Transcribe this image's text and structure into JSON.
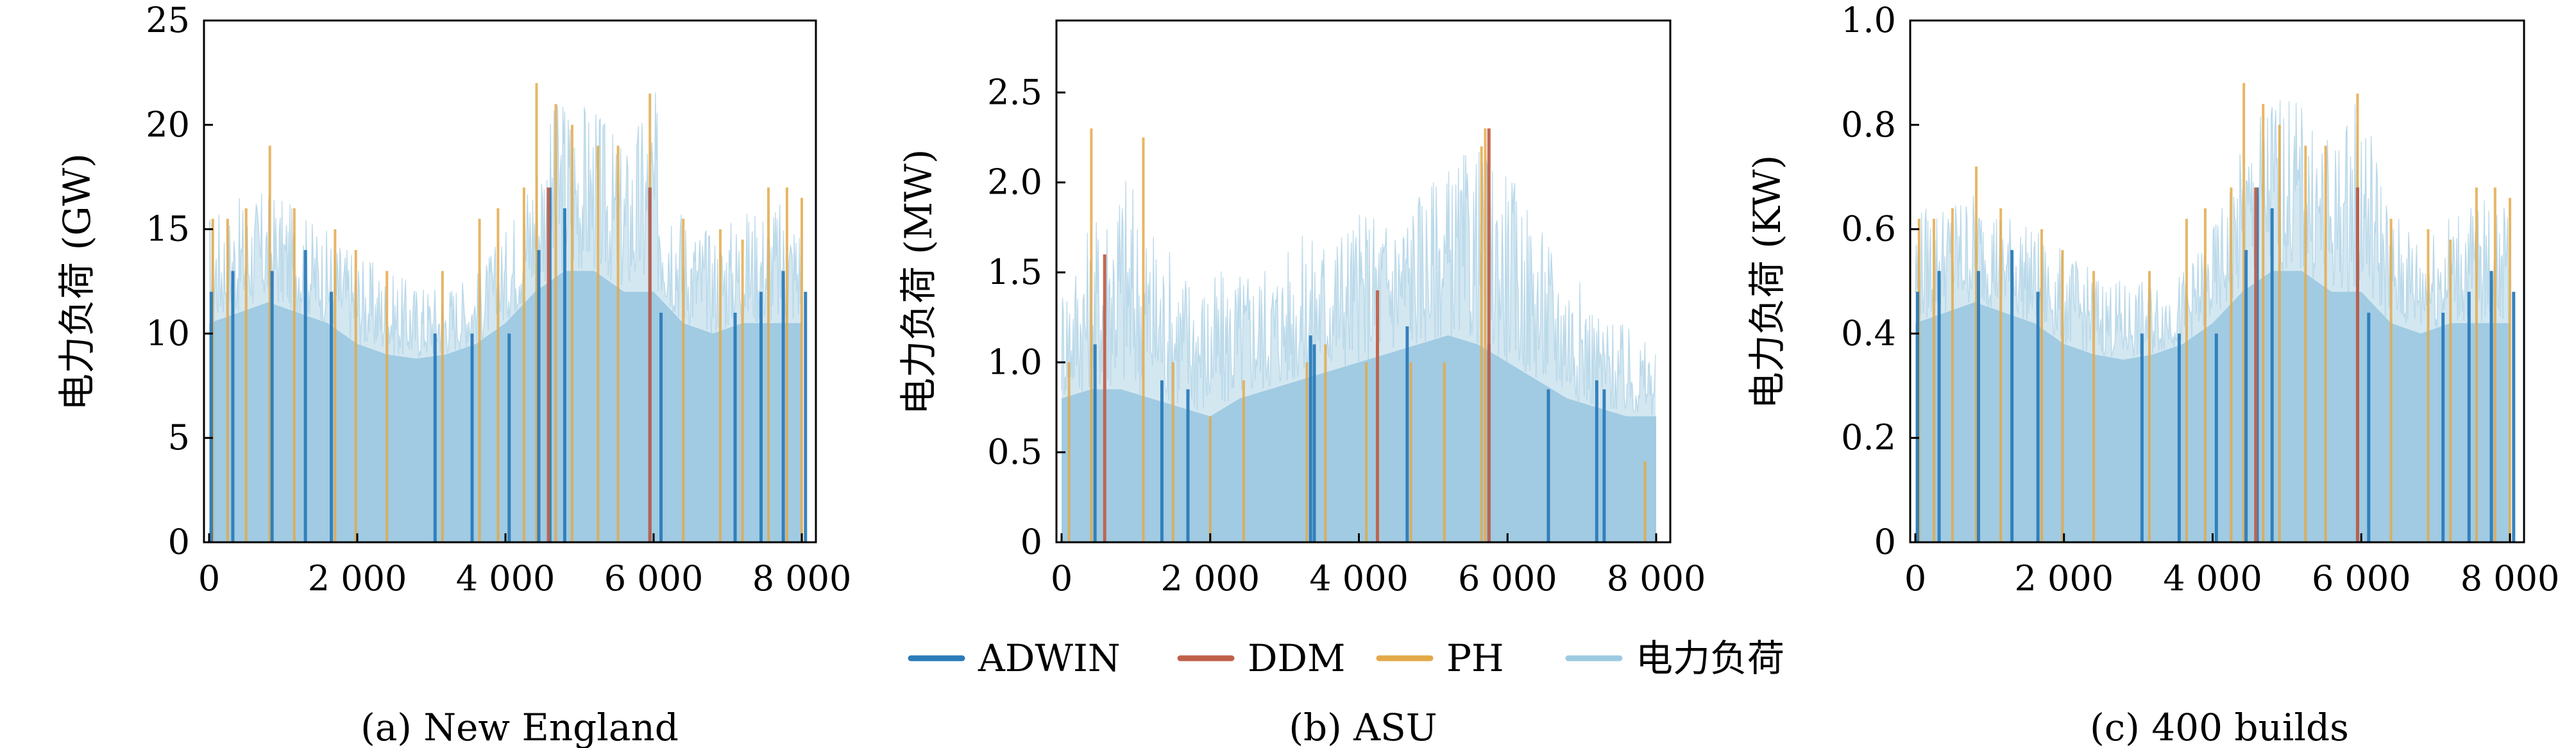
{
  "colors": {
    "ADWIN": "#2b7bb9",
    "DDM": "#c0604b",
    "PH": "#e3a94a",
    "load": "#9ecae1"
  },
  "legend": {
    "items": [
      {
        "key": "ADWIN",
        "label": "ADWIN"
      },
      {
        "key": "DDM",
        "label": "DDM"
      },
      {
        "key": "PH",
        "label": "PH"
      },
      {
        "key": "load",
        "label": "电力负荷"
      }
    ],
    "placement": "bottom-center"
  },
  "chart_data": [
    {
      "type": "area",
      "caption": "(a) New England",
      "ylabel": "电力负荷 (GW)",
      "xlim": [
        0,
        8000
      ],
      "ylim": [
        0,
        25
      ],
      "xticks": [
        0,
        2000,
        4000,
        6000,
        8000
      ],
      "xtick_labels": [
        "0",
        "2 000",
        "4 000",
        "6 000",
        "8 000"
      ],
      "yticks": [
        0,
        5,
        10,
        15,
        20,
        25
      ],
      "ytick_labels": [
        "0",
        "5",
        "10",
        "15",
        "20",
        "25"
      ],
      "grid": false,
      "load_series": {
        "name": "电力负荷",
        "x": [
          0,
          400,
          800,
          1200,
          1600,
          2000,
          2400,
          2800,
          3200,
          3600,
          4000,
          4400,
          4800,
          5200,
          5600,
          6000,
          6400,
          6800,
          7200,
          7600,
          8000
        ],
        "min": [
          10.5,
          11,
          11.5,
          11,
          10.5,
          9.5,
          9,
          8.8,
          9,
          9.5,
          10.5,
          12,
          13,
          13,
          12,
          12,
          10.5,
          10,
          10.5,
          10.5,
          10.5
        ],
        "max": [
          16,
          16.5,
          17,
          16,
          15,
          14,
          13,
          12.5,
          12.5,
          13,
          15,
          19,
          22,
          21,
          19,
          22,
          16,
          15,
          16,
          16.5,
          16
        ]
      },
      "detections": {
        "ADWIN": {
          "x": [
            30,
            320,
            850,
            1300,
            1650,
            3050,
            3550,
            4050,
            4450,
            4600,
            4800,
            5950,
            6100,
            7100,
            7450,
            7750,
            8050
          ],
          "y": [
            12,
            13,
            13,
            14,
            12,
            10,
            10,
            10,
            14,
            17,
            16,
            17,
            11,
            11,
            12,
            13,
            12
          ]
        },
        "DDM": {
          "x": [
            4580,
            5950
          ],
          "y": [
            17,
            17
          ]
        },
        "PH": {
          "x": [
            50,
            250,
            500,
            820,
            1150,
            1700,
            1980,
            2400,
            3150,
            3650,
            3900,
            4250,
            4420,
            4680,
            4900,
            5250,
            5520,
            5950,
            6400,
            6900,
            7200,
            7550,
            7800,
            8000
          ],
          "y": [
            15.5,
            15.5,
            16,
            19,
            16,
            15,
            14,
            13,
            13,
            15.5,
            16,
            17,
            22,
            21,
            20,
            19,
            19,
            21.5,
            15.5,
            15,
            14.5,
            17,
            17,
            16.5
          ]
        }
      }
    },
    {
      "type": "area",
      "caption": "(b) ASU",
      "ylabel": "电力负荷 (MW)",
      "xlim": [
        0,
        8000
      ],
      "ylim": [
        0,
        2.9
      ],
      "xticks": [
        0,
        2000,
        4000,
        6000,
        8000
      ],
      "xtick_labels": [
        "0",
        "2 000",
        "4 000",
        "6 000",
        "8 000"
      ],
      "yticks": [
        0,
        0.5,
        1.0,
        1.5,
        2.0,
        2.5
      ],
      "ytick_labels": [
        "0",
        "0.5",
        "1.0",
        "1.5",
        "2.0",
        "2.5"
      ],
      "grid": false,
      "load_series": {
        "name": "电力负荷",
        "x": [
          0,
          400,
          800,
          1200,
          1600,
          2000,
          2400,
          2800,
          3200,
          3600,
          4000,
          4400,
          4800,
          5200,
          5600,
          6000,
          6400,
          6800,
          7200,
          7600,
          8000
        ],
        "min": [
          0.8,
          0.85,
          0.85,
          0.8,
          0.75,
          0.7,
          0.8,
          0.85,
          0.9,
          0.95,
          1.0,
          1.05,
          1.1,
          1.15,
          1.1,
          1.0,
          0.9,
          0.8,
          0.75,
          0.7,
          0.7
        ],
        "max": [
          1.5,
          1.8,
          2.2,
          1.8,
          1.6,
          1.5,
          1.55,
          1.6,
          1.7,
          1.8,
          1.85,
          1.9,
          2.0,
          2.1,
          2.2,
          2.1,
          1.8,
          1.6,
          1.3,
          1.2,
          1.1
        ]
      },
      "detections": {
        "ADWIN": {
          "x": [
            450,
            1350,
            1700,
            3350,
            3400,
            4650,
            5750,
            6550,
            7200,
            7300
          ],
          "y": [
            1.1,
            0.9,
            0.85,
            1.15,
            1.1,
            1.2,
            1.1,
            0.85,
            0.9,
            0.85
          ]
        },
        "DDM": {
          "x": [
            580,
            4250,
            5750
          ],
          "y": [
            1.6,
            1.4,
            2.3
          ]
        },
        "PH": {
          "x": [
            100,
            400,
            1100,
            1500,
            2000,
            2450,
            3300,
            3550,
            4100,
            4250,
            4700,
            5150,
            5650,
            5700,
            7850
          ],
          "y": [
            1.0,
            2.3,
            2.25,
            1.0,
            0.7,
            0.9,
            1.0,
            1.1,
            1.0,
            1.25,
            1.0,
            1.0,
            2.2,
            2.3,
            0.45
          ]
        }
      }
    },
    {
      "type": "area",
      "caption": "(c) 400 builds",
      "ylabel": "电力负荷 (KW)",
      "xlim": [
        0,
        8000
      ],
      "ylim": [
        0,
        1.0
      ],
      "xticks": [
        0,
        2000,
        4000,
        6000,
        8000
      ],
      "xtick_labels": [
        "0",
        "2 000",
        "4 000",
        "6 000",
        "8 000"
      ],
      "yticks": [
        0,
        0.2,
        0.4,
        0.6,
        0.8,
        1.0
      ],
      "ytick_labels": [
        "0",
        "0.2",
        "0.4",
        "0.6",
        "0.8",
        "1.0"
      ],
      "grid": false,
      "load_series": {
        "name": "电力负荷",
        "x": [
          0,
          400,
          800,
          1200,
          1600,
          2000,
          2400,
          2800,
          3200,
          3600,
          4000,
          4400,
          4800,
          5200,
          5600,
          6000,
          6400,
          6800,
          7200,
          7600,
          8000
        ],
        "min": [
          0.42,
          0.44,
          0.46,
          0.44,
          0.42,
          0.38,
          0.36,
          0.35,
          0.36,
          0.38,
          0.42,
          0.48,
          0.52,
          0.52,
          0.48,
          0.48,
          0.42,
          0.4,
          0.42,
          0.42,
          0.42
        ],
        "max": [
          0.64,
          0.66,
          0.68,
          0.64,
          0.6,
          0.56,
          0.52,
          0.5,
          0.5,
          0.52,
          0.6,
          0.76,
          0.88,
          0.84,
          0.76,
          0.88,
          0.64,
          0.6,
          0.64,
          0.66,
          0.64
        ]
      },
      "detections": {
        "ADWIN": {
          "x": [
            30,
            320,
            850,
            1300,
            1650,
            3050,
            3550,
            4050,
            4450,
            4600,
            4800,
            5950,
            6100,
            7100,
            7450,
            7750,
            8050
          ],
          "y": [
            0.48,
            0.52,
            0.52,
            0.56,
            0.48,
            0.4,
            0.4,
            0.4,
            0.56,
            0.68,
            0.64,
            0.68,
            0.44,
            0.44,
            0.48,
            0.52,
            0.48
          ]
        },
        "DDM": {
          "x": [
            4580,
            5950
          ],
          "y": [
            0.68,
            0.68
          ]
        },
        "PH": {
          "x": [
            50,
            250,
            500,
            820,
            1150,
            1700,
            1980,
            2400,
            3150,
            3650,
            3900,
            4250,
            4420,
            4680,
            4900,
            5250,
            5520,
            5950,
            6400,
            6900,
            7200,
            7550,
            7800,
            8000
          ],
          "y": [
            0.62,
            0.62,
            0.64,
            0.72,
            0.64,
            0.6,
            0.56,
            0.52,
            0.52,
            0.62,
            0.64,
            0.68,
            0.88,
            0.84,
            0.8,
            0.76,
            0.76,
            0.86,
            0.62,
            0.6,
            0.58,
            0.68,
            0.68,
            0.66
          ]
        }
      }
    }
  ]
}
